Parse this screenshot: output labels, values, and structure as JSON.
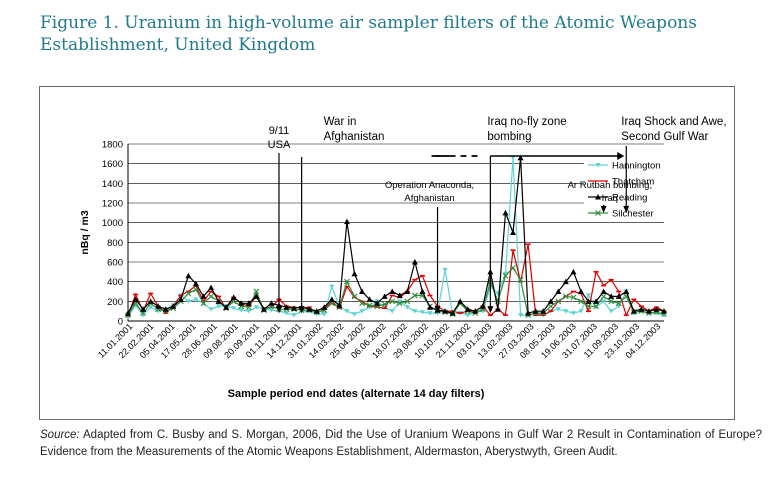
{
  "figure": {
    "title": "Figure 1. Uranium in high-volume air sampler filters of the Atomic Weapons Establishment, United Kingdom",
    "source_label": "Source:",
    "source_text": "Adapted from C. Busby and S. Morgan, 2006, Did the Use of Uranium Weapons in Gulf War 2 Result in Contamination of Europe? Evidence from the Measurements of the Atomic Weapons Establishment, Aldermaston, Aberystwyth, Green Audit."
  },
  "chart_data": {
    "type": "line",
    "ylabel": "nBq / m3",
    "xlabel": "Sample period end dates (alternate 14 day filters)",
    "ylim": [
      0,
      1800
    ],
    "yticks": [
      0,
      200,
      400,
      600,
      800,
      1000,
      1200,
      1400,
      1600,
      1800
    ],
    "grid": true,
    "legend_position": "right",
    "tick_labels": [
      "11.01.2001",
      "22.02.2001",
      "05.04.2001",
      "17.05.2001",
      "28.06.2001",
      "09.08.2001",
      "20.09.2001",
      "01.11.2001",
      "14.12.2001",
      "31.01.2002",
      "14.03.2002",
      "25.04.2002",
      "06.06.2002",
      "18.07.2002",
      "29.08.2002",
      "10.10.2002",
      "21.11.2002",
      "03.01.2003",
      "13.02.2003",
      "27.03.2003",
      "08.05.2003",
      "19.06.2003",
      "31.07.2003",
      "11.09.2003",
      "23.10.2003",
      "04.12.2003"
    ],
    "series": [
      {
        "name": "Hannington",
        "color": "#5fd3d3",
        "marker": "triangle-down",
        "values": [
          40,
          160,
          60,
          140,
          100,
          120,
          160,
          260,
          200,
          220,
          180,
          120,
          150,
          150,
          130,
          110,
          100,
          140,
          120,
          110,
          100,
          80,
          60,
          100,
          100,
          70,
          70,
          350,
          150,
          100,
          70,
          100,
          140,
          200,
          140,
          100,
          200,
          140,
          100,
          90,
          80,
          80,
          520,
          70,
          80,
          60,
          90,
          100,
          350,
          280,
          480,
          1660,
          60,
          60,
          80,
          60,
          100,
          120,
          100,
          80,
          100,
          260,
          140,
          200,
          100,
          150,
          300,
          80,
          100,
          80,
          80,
          60
        ]
      },
      {
        "name": "Thatcham",
        "color": "#e00000",
        "marker": "dash",
        "values": [
          50,
          270,
          100,
          280,
          150,
          80,
          150,
          260,
          300,
          360,
          200,
          300,
          250,
          120,
          240,
          180,
          150,
          250,
          130,
          140,
          220,
          150,
          140,
          130,
          140,
          80,
          120,
          200,
          130,
          350,
          240,
          200,
          150,
          140,
          130,
          260,
          240,
          300,
          420,
          460,
          260,
          150,
          100,
          100,
          80,
          100,
          100,
          150,
          60,
          120,
          60,
          720,
          400,
          780,
          60,
          60,
          100,
          200,
          250,
          300,
          280,
          100,
          500,
          360,
          420,
          300,
          60,
          220,
          150,
          100,
          140,
          100
        ]
      },
      {
        "name": "Reading",
        "color": "#000000",
        "marker": "triangle-up",
        "values": [
          80,
          220,
          120,
          200,
          150,
          120,
          150,
          220,
          460,
          380,
          250,
          340,
          200,
          140,
          240,
          180,
          180,
          250,
          120,
          180,
          160,
          140,
          130,
          140,
          120,
          100,
          140,
          220,
          160,
          1010,
          480,
          300,
          220,
          180,
          250,
          300,
          260,
          300,
          600,
          300,
          140,
          110,
          100,
          80,
          200,
          120,
          100,
          150,
          500,
          120,
          1100,
          900,
          1660,
          80,
          100,
          100,
          200,
          300,
          400,
          500,
          300,
          200,
          200,
          300,
          250,
          250,
          300,
          100,
          120,
          100,
          120,
          100
        ]
      },
      {
        "name": "Silchester",
        "color": "#2e8b3a",
        "marker": "x",
        "values": [
          60,
          180,
          80,
          180,
          120,
          100,
          130,
          200,
          280,
          320,
          180,
          250,
          200,
          130,
          200,
          150,
          140,
          300,
          110,
          150,
          120,
          120,
          120,
          110,
          110,
          90,
          110,
          180,
          140,
          400,
          250,
          180,
          160,
          150,
          170,
          200,
          180,
          200,
          260,
          260,
          150,
          100,
          90,
          70,
          180,
          100,
          80,
          120,
          400,
          200,
          460,
          540,
          420,
          60,
          80,
          80,
          150,
          200,
          250,
          240,
          200,
          150,
          150,
          250,
          200,
          180,
          250,
          90,
          100,
          80,
          90,
          70
        ]
      }
    ],
    "annotations": [
      {
        "label": "9/11",
        "label2": "USA",
        "index": 20,
        "y_end": 80
      },
      {
        "label": "War in",
        "label2": "Afghanistan",
        "index": 23,
        "y_end": 80
      },
      {
        "label": "Operation Anaconda,",
        "label2": "Afghanistan",
        "index": 41,
        "y_end": 80
      },
      {
        "label": "Iraq no-fly zone",
        "label2": "bombing",
        "index": 48,
        "y_end": 80
      },
      {
        "label": "Ar Rutbah bombing,",
        "label2": "Iraq",
        "index": 63,
        "y_end": 1100
      },
      {
        "label": "Iraq Shock and Awe,",
        "label2": "Second Gulf War",
        "index": 66,
        "y_end": 1100
      }
    ]
  }
}
